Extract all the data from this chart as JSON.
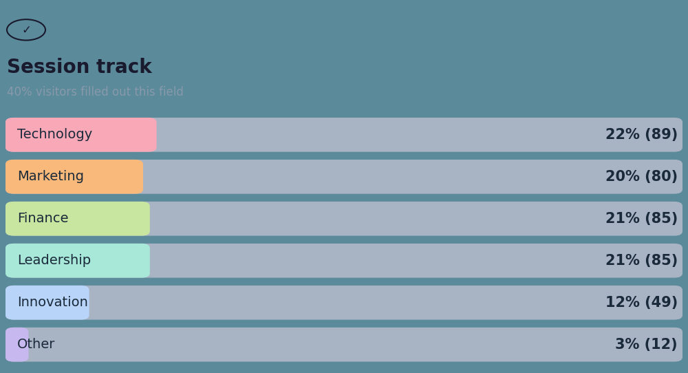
{
  "title": "Session track",
  "subtitle": "40% visitors filled out this field",
  "categories": [
    "Technology",
    "Marketing",
    "Finance",
    "Leadership",
    "Innovation",
    "Other"
  ],
  "percentages": [
    22,
    20,
    21,
    21,
    12,
    3
  ],
  "counts": [
    89,
    80,
    85,
    85,
    49,
    12
  ],
  "bar_colors": [
    "#F9A8B8",
    "#F9B97A",
    "#C8E6A0",
    "#A8E8D8",
    "#B8D4F8",
    "#C8B8F0"
  ],
  "bg_bar_color": "#A8B4C4",
  "background_color": "#5B8A9A",
  "text_color": "#1a2a3a",
  "title_color": "#1a1a2e",
  "subtitle_color": "#8899AA",
  "label_fontsize": 14,
  "title_fontsize": 20,
  "subtitle_fontsize": 12,
  "annotation_fontsize": 15,
  "bar_height": 0.7,
  "colored_widths": [
    22,
    20,
    21,
    21,
    12,
    3
  ],
  "max_pct": 100
}
